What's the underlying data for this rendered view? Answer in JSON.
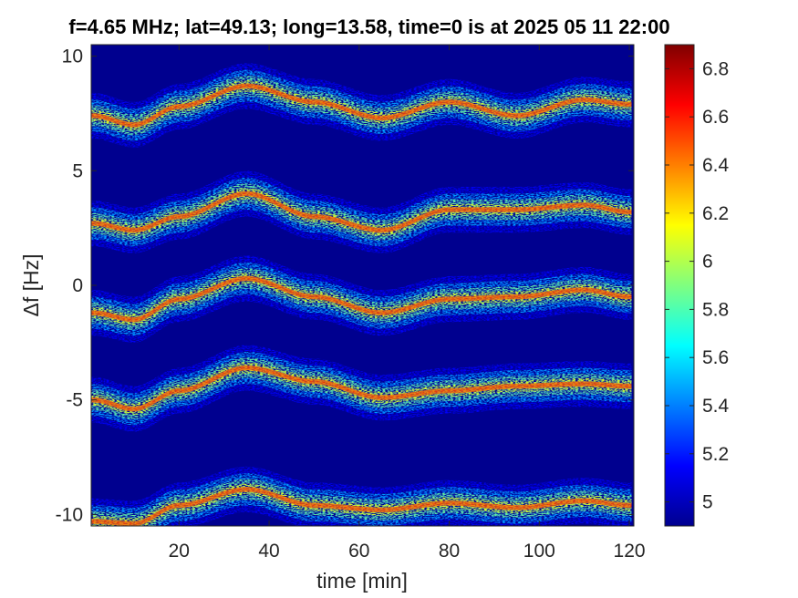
{
  "chart_data": {
    "type": "heatmap",
    "title": "f=4.65 MHz;  lat=49.13; long=13.58, time=0 is at 2025 05 11 22:00",
    "xlabel": "time [min]",
    "ylabel": "Δf [Hz]",
    "xlim": [
      0.5,
      121
    ],
    "ylim": [
      -10.5,
      10.5
    ],
    "x_ticks": [
      20,
      40,
      60,
      80,
      100,
      120
    ],
    "y_ticks": [
      -10,
      -5,
      0,
      5,
      10
    ],
    "colormap": "jet",
    "colorbar": {
      "range": [
        4.9,
        6.9
      ],
      "ticks": [
        5,
        5.2,
        5.4,
        5.6,
        5.8,
        6,
        6.2,
        6.4,
        6.6,
        6.8
      ],
      "tick_labels": [
        "5",
        "5.2",
        "5.4",
        "5.6",
        "5.8",
        "6",
        "6.2",
        "6.4",
        "6.6",
        "6.8"
      ]
    },
    "background_color": "#00008f",
    "traces": [
      {
        "offset": 7.3,
        "points": [
          [
            1,
            7.4
          ],
          [
            10,
            7.0
          ],
          [
            20,
            7.8
          ],
          [
            35,
            8.7
          ],
          [
            50,
            8.0
          ],
          [
            65,
            7.3
          ],
          [
            80,
            8.0
          ],
          [
            95,
            7.4
          ],
          [
            110,
            8.1
          ],
          [
            120,
            7.9
          ]
        ]
      },
      {
        "offset": 2.6,
        "points": [
          [
            1,
            2.7
          ],
          [
            10,
            2.4
          ],
          [
            20,
            3.0
          ],
          [
            35,
            4.0
          ],
          [
            50,
            3.0
          ],
          [
            65,
            2.4
          ],
          [
            80,
            3.3
          ],
          [
            95,
            3.3
          ],
          [
            110,
            3.5
          ],
          [
            120,
            3.2
          ]
        ]
      },
      {
        "offset": -1.2,
        "points": [
          [
            1,
            -1.2
          ],
          [
            10,
            -1.5
          ],
          [
            20,
            -0.6
          ],
          [
            35,
            0.3
          ],
          [
            50,
            -0.5
          ],
          [
            65,
            -1.2
          ],
          [
            80,
            -0.6
          ],
          [
            95,
            -0.5
          ],
          [
            110,
            -0.2
          ],
          [
            120,
            -0.5
          ]
        ]
      },
      {
        "offset": -5.0,
        "points": [
          [
            1,
            -5.0
          ],
          [
            10,
            -5.4
          ],
          [
            20,
            -4.6
          ],
          [
            35,
            -3.6
          ],
          [
            50,
            -4.2
          ],
          [
            65,
            -4.9
          ],
          [
            80,
            -4.6
          ],
          [
            95,
            -4.4
          ],
          [
            110,
            -4.3
          ],
          [
            120,
            -4.4
          ]
        ]
      },
      {
        "offset": -10.2,
        "points": [
          [
            1,
            -10.3
          ],
          [
            10,
            -10.4
          ],
          [
            20,
            -9.6
          ],
          [
            35,
            -8.9
          ],
          [
            50,
            -9.6
          ],
          [
            65,
            -9.8
          ],
          [
            80,
            -9.5
          ],
          [
            95,
            -9.7
          ],
          [
            110,
            -9.4
          ],
          [
            120,
            -9.6
          ]
        ]
      }
    ]
  }
}
